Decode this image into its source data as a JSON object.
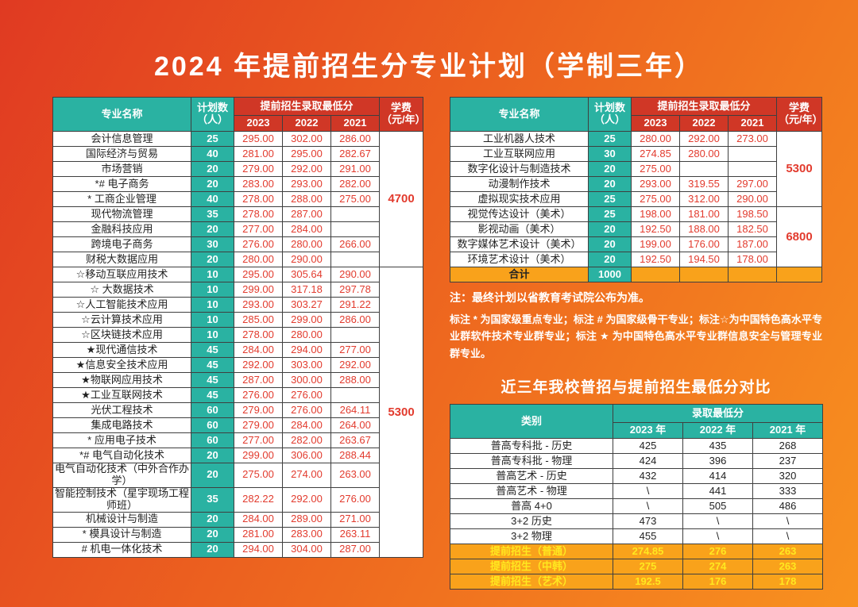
{
  "title": "2024 年提前招生分专业计划（学制三年）",
  "colors": {
    "background_red": "#e03a22",
    "background_orange": "#f8921f",
    "teal": "#2ab2a2",
    "header_red": "#d03726",
    "score_red": "#e23b2e",
    "total_orange": "#f9a21b",
    "highlight_yellow": "#ffe81f"
  },
  "common_headers": {
    "major": "专业名称",
    "plan": "计划数\n（人）",
    "score_group": "提前招生录取最低分",
    "years": [
      "2023",
      "2022",
      "2021"
    ],
    "tuition": "学费\n（元/年）"
  },
  "left_table": {
    "rows": [
      {
        "major": "会计信息管理",
        "plan": "25",
        "scores": [
          "295.00",
          "302.00",
          "286.00"
        ]
      },
      {
        "major": "国际经济与贸易",
        "plan": "40",
        "scores": [
          "281.00",
          "295.00",
          "282.67"
        ]
      },
      {
        "major": "市场营销",
        "plan": "20",
        "scores": [
          "279.00",
          "292.00",
          "291.00"
        ]
      },
      {
        "major": "*# 电子商务",
        "plan": "20",
        "scores": [
          "283.00",
          "293.00",
          "282.00"
        ]
      },
      {
        "major": "* 工商企业管理",
        "plan": "40",
        "scores": [
          "278.00",
          "288.00",
          "275.00"
        ]
      },
      {
        "major": "现代物流管理",
        "plan": "35",
        "scores": [
          "278.00",
          "287.00",
          ""
        ]
      },
      {
        "major": "金融科技应用",
        "plan": "20",
        "scores": [
          "277.00",
          "284.00",
          ""
        ]
      },
      {
        "major": "跨境电子商务",
        "plan": "30",
        "scores": [
          "276.00",
          "280.00",
          "266.00"
        ]
      },
      {
        "major": "财税大数据应用",
        "plan": "20",
        "scores": [
          "280.00",
          "290.00",
          ""
        ]
      },
      {
        "major": "☆移动互联应用技术",
        "plan": "10",
        "scores": [
          "295.00",
          "305.64",
          "290.00"
        ]
      },
      {
        "major": "☆ 大数据技术",
        "plan": "10",
        "scores": [
          "299.00",
          "317.18",
          "297.78"
        ]
      },
      {
        "major": "☆人工智能技术应用",
        "plan": "10",
        "scores": [
          "293.00",
          "303.27",
          "291.22"
        ]
      },
      {
        "major": "☆云计算技术应用",
        "plan": "10",
        "scores": [
          "285.00",
          "299.00",
          "286.00"
        ]
      },
      {
        "major": "☆区块链技术应用",
        "plan": "10",
        "scores": [
          "278.00",
          "280.00",
          ""
        ]
      },
      {
        "major": "★现代通信技术",
        "plan": "45",
        "scores": [
          "284.00",
          "294.00",
          "277.00"
        ]
      },
      {
        "major": "★信息安全技术应用",
        "plan": "45",
        "scores": [
          "292.00",
          "303.00",
          "292.00"
        ]
      },
      {
        "major": "★物联网应用技术",
        "plan": "45",
        "scores": [
          "287.00",
          "300.00",
          "288.00"
        ]
      },
      {
        "major": "★工业互联网技术",
        "plan": "45",
        "scores": [
          "276.00",
          "276.00",
          ""
        ]
      },
      {
        "major": "光伏工程技术",
        "plan": "60",
        "scores": [
          "279.00",
          "276.00",
          "264.11"
        ]
      },
      {
        "major": "集成电路技术",
        "plan": "60",
        "scores": [
          "279.00",
          "284.00",
          "264.00"
        ]
      },
      {
        "major": "* 应用电子技术",
        "plan": "60",
        "scores": [
          "277.00",
          "282.00",
          "263.67"
        ]
      },
      {
        "major": "*# 电气自动化技术",
        "plan": "20",
        "scores": [
          "299.00",
          "306.00",
          "288.44"
        ]
      },
      {
        "major": "电气自动化技术（中外合作办学）",
        "plan": "20",
        "scores": [
          "275.00",
          "274.00",
          "263.00"
        ]
      },
      {
        "major": "智能控制技术（星宇现场工程师班）",
        "plan": "35",
        "scores": [
          "282.22",
          "292.00",
          "276.00"
        ]
      },
      {
        "major": "机械设计与制造",
        "plan": "20",
        "scores": [
          "284.00",
          "289.00",
          "271.00"
        ]
      },
      {
        "major": "* 模具设计与制造",
        "plan": "20",
        "scores": [
          "281.00",
          "283.00",
          "263.11"
        ]
      },
      {
        "major": "# 机电一体化技术",
        "plan": "20",
        "scores": [
          "294.00",
          "304.00",
          "287.00"
        ]
      }
    ],
    "tuition_spans": [
      {
        "value": "4700",
        "start": 0,
        "count": 9
      },
      {
        "value": "5300",
        "start": 9,
        "count": 18
      }
    ]
  },
  "right_table": {
    "rows": [
      {
        "major": "工业机器人技术",
        "plan": "25",
        "scores": [
          "280.00",
          "292.00",
          "273.00"
        ]
      },
      {
        "major": "工业互联网应用",
        "plan": "30",
        "scores": [
          "274.85",
          "280.00",
          ""
        ]
      },
      {
        "major": "数字化设计与制造技术",
        "plan": "20",
        "scores": [
          "275.00",
          "",
          ""
        ]
      },
      {
        "major": "动漫制作技术",
        "plan": "20",
        "scores": [
          "293.00",
          "319.55",
          "297.00"
        ]
      },
      {
        "major": "虚拟现实技术应用",
        "plan": "25",
        "scores": [
          "275.00",
          "312.00",
          "290.00"
        ]
      },
      {
        "major": "视觉传达设计（美术）",
        "plan": "25",
        "scores": [
          "198.00",
          "181.00",
          "198.50"
        ]
      },
      {
        "major": "影视动画（美术）",
        "plan": "20",
        "scores": [
          "192.50",
          "188.00",
          "182.50"
        ]
      },
      {
        "major": "数字媒体艺术设计（美术）",
        "plan": "20",
        "scores": [
          "199.00",
          "176.00",
          "187.00"
        ]
      },
      {
        "major": "环境艺术设计（美术）",
        "plan": "20",
        "scores": [
          "192.50",
          "194.50",
          "178.00"
        ]
      }
    ],
    "tuition_spans": [
      {
        "value": "5300",
        "start": 0,
        "count": 5
      },
      {
        "value": "6800",
        "start": 5,
        "count": 4
      }
    ],
    "total": {
      "label": "合计",
      "plan": "1000"
    }
  },
  "notes": {
    "note1": "注：最终计划以省教育考试院公布为准。",
    "note2": "标注 * 为国家级重点专业；标注 # 为国家级骨干专业；标注☆为中国特色高水平专业群软件技术专业群专业；标注 ★ 为中国特色高水平专业群信息安全与管理专业群专业。"
  },
  "compare": {
    "title": "近三年我校普招与提前招生最低分对比",
    "headers": {
      "category": "类别",
      "score_group": "录取最低分",
      "years": [
        "2023 年",
        "2022 年",
        "2021 年"
      ]
    },
    "rows": [
      {
        "category": "普高专科批 - 历史",
        "values": [
          "425",
          "435",
          "268"
        ],
        "highlight": false
      },
      {
        "category": "普高专科批 - 物理",
        "values": [
          "424",
          "396",
          "237"
        ],
        "highlight": false
      },
      {
        "category": "普高艺术 - 历史",
        "values": [
          "432",
          "414",
          "320"
        ],
        "highlight": false
      },
      {
        "category": "普高艺术 - 物理",
        "values": [
          "\\",
          "441",
          "333"
        ],
        "highlight": false
      },
      {
        "category": "普高 4+0",
        "values": [
          "\\",
          "505",
          "486"
        ],
        "highlight": false
      },
      {
        "category": "3+2 历史",
        "values": [
          "473",
          "\\",
          "\\"
        ],
        "highlight": false
      },
      {
        "category": "3+2 物理",
        "values": [
          "455",
          "\\",
          "\\"
        ],
        "highlight": false
      },
      {
        "category": "提前招生（普通）",
        "values": [
          "274.85",
          "276",
          "263"
        ],
        "highlight": true
      },
      {
        "category": "提前招生（中韩）",
        "values": [
          "275",
          "274",
          "263"
        ],
        "highlight": true
      },
      {
        "category": "提前招生（艺术）",
        "values": [
          "192.5",
          "176",
          "178"
        ],
        "highlight": true
      }
    ]
  }
}
